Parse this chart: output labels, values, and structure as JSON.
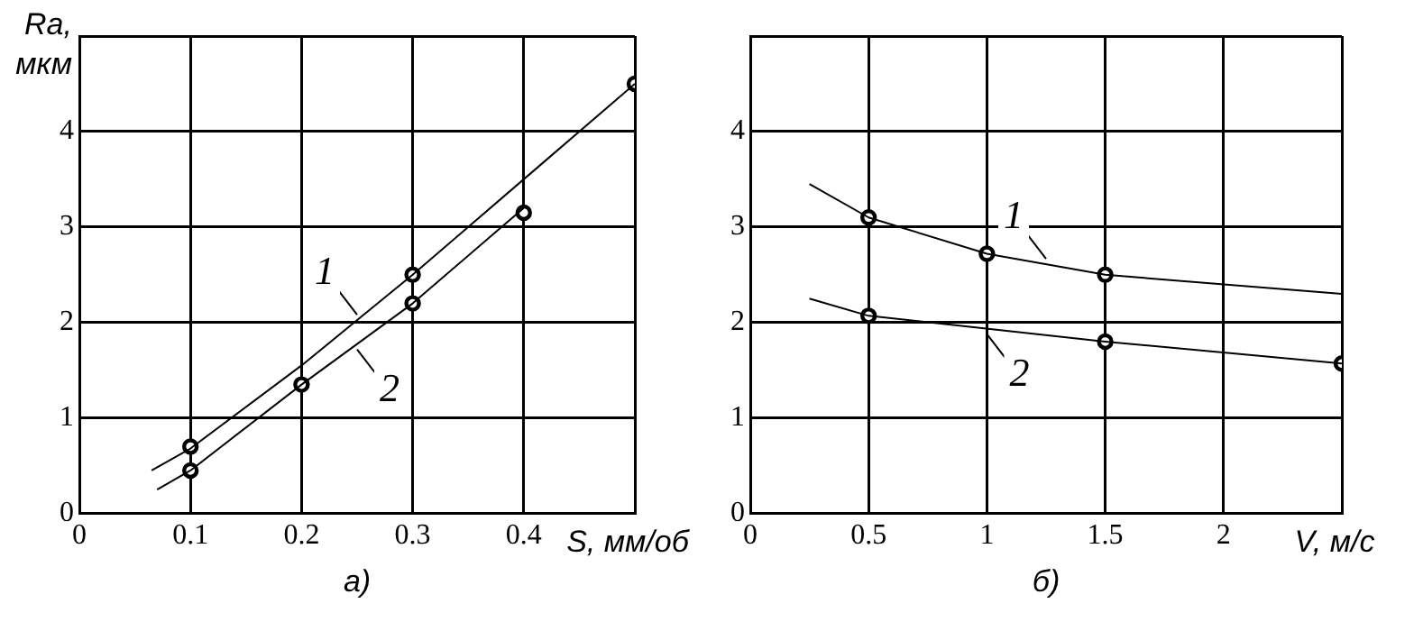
{
  "chart_data": [
    {
      "type": "line",
      "ylabel": "Ra,\nмкм",
      "xlabel": "S, мм/об",
      "xlim": [
        0,
        0.5
      ],
      "ylim": [
        0,
        5
      ],
      "xticks": [
        0,
        0.1,
        0.2,
        0.3,
        0.4,
        {
          "value": 0.5,
          "label": null
        }
      ],
      "yticks": [
        0,
        1,
        2,
        3,
        4,
        {
          "value": 5,
          "label": null
        }
      ],
      "grid": true,
      "series": [
        {
          "type": "line",
          "name": "1",
          "color": "#000000",
          "marker": "none",
          "x": [
            0.065,
            0.1,
            0.2,
            0.3,
            0.4,
            0.5
          ],
          "values": [
            0.45,
            0.68,
            1.55,
            2.5,
            3.5,
            4.5
          ]
        },
        {
          "type": "line",
          "name": "2",
          "color": "#000000",
          "marker": "none",
          "x": [
            0.07,
            0.1,
            0.2,
            0.3,
            0.4
          ],
          "values": [
            0.25,
            0.45,
            1.35,
            2.2,
            3.2
          ]
        },
        {
          "type": "scatter",
          "color": "#000000",
          "marker": "circle",
          "x": [
            0.1,
            0.3,
            0.5
          ],
          "values": [
            0.7,
            2.5,
            4.5
          ]
        },
        {
          "type": "scatter",
          "color": "#000000",
          "marker": "circle",
          "x": [
            0.1,
            0.2,
            0.3,
            0.4
          ],
          "values": [
            0.45,
            1.35,
            2.2,
            3.15
          ]
        }
      ],
      "annotations": [
        "а)"
      ]
    },
    {
      "type": "line",
      "xlabel": "V, м/с",
      "xlim": [
        0,
        2.5
      ],
      "ylim": [
        0,
        5
      ],
      "xticks": [
        0,
        0.5,
        1,
        1.5,
        2,
        {
          "value": 2.5,
          "label": null
        }
      ],
      "yticks": [
        0,
        1,
        2,
        3,
        4,
        {
          "value": 5,
          "label": null
        }
      ],
      "grid": true,
      "series": [
        {
          "type": "line",
          "name": "1",
          "color": "#000000",
          "marker": "none",
          "x": [
            0.25,
            0.5,
            1,
            1.5,
            2.5
          ],
          "values": [
            3.45,
            3.1,
            2.72,
            2.5,
            2.3
          ]
        },
        {
          "type": "line",
          "name": "2",
          "color": "#000000",
          "marker": "none",
          "x": [
            0.25,
            0.5,
            1.5,
            2.5
          ],
          "values": [
            2.25,
            2.07,
            1.8,
            1.57
          ]
        },
        {
          "type": "scatter",
          "color": "#000000",
          "marker": "circle",
          "x": [
            0.5,
            1,
            1.5
          ],
          "values": [
            3.1,
            2.72,
            2.5
          ]
        },
        {
          "type": "scatter",
          "color": "#000000",
          "marker": "circle",
          "x": [
            0.5,
            1.5,
            2.5
          ],
          "values": [
            2.07,
            1.8,
            1.57
          ]
        }
      ],
      "annotations": [
        "б)"
      ]
    }
  ]
}
